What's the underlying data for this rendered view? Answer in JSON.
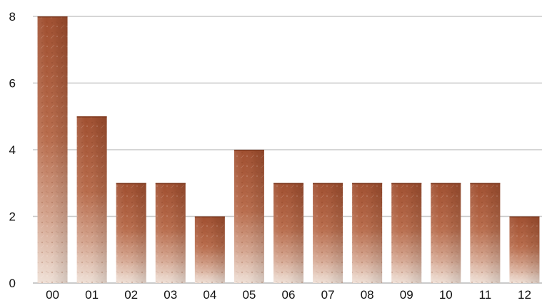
{
  "chart_data": {
    "type": "bar",
    "title": "",
    "xlabel": "",
    "ylabel": "",
    "categories": [
      "00",
      "01",
      "02",
      "03",
      "04",
      "05",
      "06",
      "07",
      "08",
      "09",
      "10",
      "11",
      "12"
    ],
    "values": [
      8,
      5,
      3,
      3,
      2,
      4,
      3,
      3,
      3,
      3,
      3,
      3,
      2
    ],
    "ylim": [
      0,
      8
    ],
    "yticks": [
      "0",
      "2",
      "4",
      "6",
      "8"
    ],
    "grid": true,
    "legend": "none",
    "bar_fill": "copper textured gradient",
    "colors": {
      "bar_top": "#9a4a2c",
      "bar_mid": "#bf7656",
      "bar_bottom": "#ead7cb",
      "grid": "#c8c8c8",
      "text": "#111111"
    }
  }
}
